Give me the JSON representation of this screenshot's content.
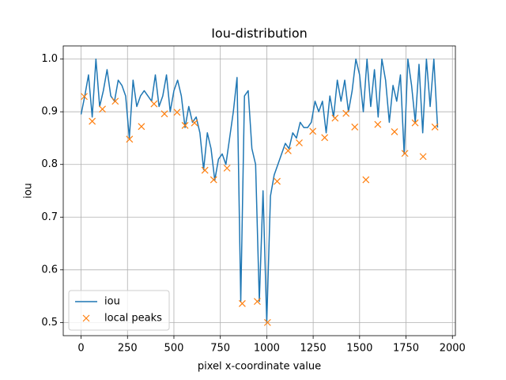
{
  "chart_data": {
    "type": "line",
    "title": "Iou-distribution",
    "xlabel": "pixel x-coordinate value",
    "ylabel": "iou",
    "xlim": [
      -96,
      2016
    ],
    "ylim": [
      0.475,
      1.025
    ],
    "xticks": [
      0,
      250,
      500,
      750,
      1000,
      1250,
      1500,
      1750,
      2000
    ],
    "yticks": [
      0.5,
      0.6,
      0.7,
      0.8,
      0.9,
      {
        "value": 1,
        "label": "1.0"
      }
    ],
    "grid": true,
    "legend": "lower left",
    "series": [
      {
        "name": "iou",
        "type": "line",
        "color": "#1f77b4",
        "x": [
          0,
          20,
          40,
          60,
          80,
          100,
          120,
          140,
          160,
          180,
          200,
          220,
          240,
          260,
          280,
          300,
          320,
          340,
          360,
          380,
          400,
          420,
          440,
          460,
          480,
          500,
          520,
          540,
          560,
          580,
          600,
          620,
          640,
          660,
          680,
          700,
          720,
          740,
          760,
          780,
          800,
          820,
          840,
          860,
          880,
          900,
          920,
          940,
          960,
          980,
          1000,
          1020,
          1040,
          1060,
          1080,
          1100,
          1120,
          1140,
          1160,
          1180,
          1200,
          1220,
          1240,
          1260,
          1280,
          1300,
          1320,
          1340,
          1360,
          1380,
          1400,
          1420,
          1440,
          1460,
          1480,
          1500,
          1520,
          1540,
          1560,
          1580,
          1600,
          1620,
          1640,
          1660,
          1680,
          1700,
          1720,
          1740,
          1760,
          1780,
          1800,
          1820,
          1840,
          1860,
          1880,
          1900,
          1920
        ],
        "values": [
          0.895,
          0.93,
          0.97,
          0.89,
          1.0,
          0.91,
          0.94,
          0.98,
          0.93,
          0.92,
          0.96,
          0.95,
          0.93,
          0.85,
          0.96,
          0.91,
          0.93,
          0.94,
          0.93,
          0.92,
          0.97,
          0.91,
          0.93,
          0.97,
          0.9,
          0.94,
          0.96,
          0.93,
          0.87,
          0.91,
          0.88,
          0.89,
          0.86,
          0.79,
          0.86,
          0.83,
          0.77,
          0.81,
          0.82,
          0.8,
          0.85,
          0.9,
          0.965,
          0.54,
          0.93,
          0.94,
          0.83,
          0.8,
          0.54,
          0.75,
          0.5,
          0.74,
          0.78,
          0.8,
          0.82,
          0.84,
          0.83,
          0.86,
          0.85,
          0.88,
          0.87,
          0.87,
          0.88,
          0.92,
          0.9,
          0.92,
          0.86,
          0.93,
          0.89,
          0.96,
          0.92,
          0.96,
          0.9,
          0.94,
          1.0,
          0.97,
          0.9,
          1.0,
          0.91,
          0.98,
          0.89,
          1.0,
          0.96,
          0.88,
          0.95,
          0.92,
          0.97,
          0.82,
          1.0,
          0.95,
          0.88,
          0.99,
          0.86,
          1.0,
          0.91,
          1.0,
          0.87
        ]
      },
      {
        "name": "local peaks",
        "type": "scatter",
        "color": "#ff7f0e",
        "x": [
          17,
          60,
          115,
          184,
          261,
          325,
          393,
          449,
          517,
          560,
          611,
          667,
          714,
          786,
          868,
          949,
          1004,
          1056,
          1115,
          1175,
          1248,
          1312,
          1368,
          1427,
          1474,
          1534,
          1598,
          1688,
          1744,
          1799,
          1842,
          1906
        ],
        "values": [
          0.929,
          0.882,
          0.905,
          0.92,
          0.848,
          0.872,
          0.915,
          0.896,
          0.899,
          0.874,
          0.879,
          0.789,
          0.771,
          0.793,
          0.536,
          0.54,
          0.5,
          0.768,
          0.826,
          0.841,
          0.863,
          0.851,
          0.888,
          0.897,
          0.871,
          0.771,
          0.876,
          0.862,
          0.821,
          0.879,
          0.815,
          0.871
        ]
      }
    ]
  }
}
